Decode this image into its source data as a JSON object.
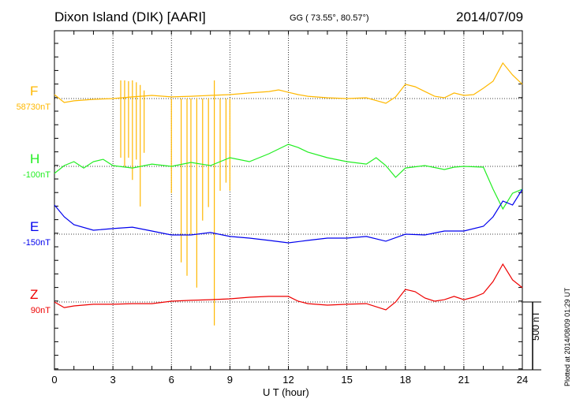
{
  "header": {
    "station": "Dixon Island (DIK)  [AARI]",
    "coords": "GG ( 73.55°,  80.57°)",
    "date": "2014/07/09"
  },
  "footer": {
    "plotted": "Plotted at 2014/08/09 01:29 UT",
    "scale_label": "500 nT"
  },
  "chart_data": {
    "type": "line",
    "xlabel": "U T (hour)",
    "xlim": [
      0,
      24
    ],
    "xticks": [
      0,
      3,
      6,
      9,
      12,
      15,
      18,
      21,
      24
    ],
    "y_scale_nT_per_division": 100,
    "series": [
      {
        "name": "F",
        "baseline_label": "58730nT",
        "color": "#FFB800",
        "x": [
          0,
          0.5,
          1,
          2,
          3,
          4,
          5,
          6,
          7,
          8,
          9,
          10,
          11,
          11.5,
          12,
          12.5,
          13,
          14,
          15,
          16,
          17,
          17.5,
          18,
          18.5,
          19,
          19.5,
          20,
          20.5,
          21,
          21.5,
          22,
          22.5,
          23,
          23.5,
          24
        ],
        "y": [
          29,
          -29,
          -17,
          -6,
          0,
          12,
          23,
          12,
          17,
          23,
          29,
          41,
          52,
          64,
          46,
          29,
          17,
          6,
          0,
          6,
          -35,
          12,
          105,
          87,
          52,
          17,
          6,
          41,
          23,
          29,
          76,
          128,
          262,
          174,
          105
        ],
        "spikes": [
          [
            3.4,
            -436,
            134
          ],
          [
            3.6,
            -500,
            134
          ],
          [
            3.8,
            -436,
            128
          ],
          [
            4.0,
            -600,
            134
          ],
          [
            4.2,
            -450,
            120
          ],
          [
            4.4,
            -796,
            100
          ],
          [
            4.6,
            -400,
            60
          ],
          [
            6.0,
            -697,
            0
          ],
          [
            6.5,
            -1208,
            0
          ],
          [
            6.8,
            -1307,
            0
          ],
          [
            7.0,
            -1000,
            0
          ],
          [
            7.3,
            -1394,
            0
          ],
          [
            7.6,
            -900,
            0
          ],
          [
            7.9,
            -800,
            0
          ],
          [
            8.2,
            -1673,
            134
          ],
          [
            8.5,
            -680,
            0
          ],
          [
            8.8,
            -620,
            0
          ],
          [
            9.0,
            -680,
            0
          ]
        ]
      },
      {
        "name": "H",
        "baseline_label": "-100nT",
        "color": "#22EE22",
        "x": [
          0,
          0.5,
          1,
          1.5,
          2,
          2.5,
          3,
          4,
          5,
          6,
          7,
          8,
          9,
          10,
          11,
          12,
          12.5,
          13,
          14,
          15,
          16,
          16.5,
          17,
          17.5,
          18,
          19,
          20,
          20.5,
          21,
          22,
          22.5,
          23,
          23.5,
          24
        ],
        "y": [
          -52,
          6,
          35,
          -12,
          35,
          52,
          6,
          -12,
          17,
          0,
          29,
          6,
          64,
          35,
          93,
          163,
          139,
          105,
          64,
          35,
          17,
          64,
          6,
          -81,
          -12,
          6,
          -23,
          -6,
          0,
          -6,
          -168,
          -314,
          -198,
          -168
        ]
      },
      {
        "name": "E",
        "baseline_label": "-150nT",
        "color": "#0000EE",
        "x": [
          0,
          0.5,
          1,
          2,
          3,
          4,
          5,
          6,
          7,
          8,
          9,
          10,
          11,
          12,
          13,
          14,
          15,
          16,
          17,
          18,
          19,
          20,
          21,
          22,
          22.5,
          23,
          23.5,
          24
        ],
        "y": [
          215,
          128,
          70,
          29,
          41,
          52,
          23,
          -6,
          -6,
          12,
          -17,
          -29,
          -46,
          -64,
          -46,
          -29,
          -29,
          -17,
          -52,
          0,
          -6,
          23,
          23,
          58,
          128,
          244,
          215,
          331
        ]
      },
      {
        "name": "Z",
        "baseline_label": "90nT",
        "color": "#EE0000",
        "x": [
          0,
          0.5,
          1,
          2,
          3,
          4,
          5,
          6,
          7,
          8,
          9,
          10,
          11,
          12,
          12.5,
          13,
          14,
          15,
          16,
          17,
          17.5,
          18,
          18.5,
          19,
          19.5,
          20,
          20.5,
          21,
          21.5,
          22,
          22.5,
          23,
          23.5,
          24
        ],
        "y": [
          0,
          -41,
          -29,
          -17,
          -17,
          -12,
          -12,
          6,
          12,
          17,
          23,
          35,
          41,
          41,
          6,
          -12,
          -23,
          -17,
          -12,
          -58,
          0,
          93,
          76,
          29,
          6,
          17,
          41,
          17,
          35,
          64,
          151,
          279,
          163,
          105
        ]
      }
    ]
  }
}
